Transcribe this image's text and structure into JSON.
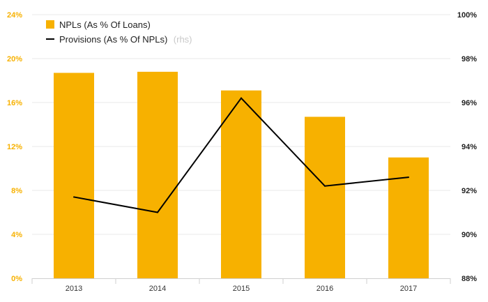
{
  "chart_data": {
    "type": "bar",
    "categories": [
      "2013",
      "2014",
      "2015",
      "2016",
      "2017"
    ],
    "series": [
      {
        "name": "NPLs (As % Of Loans)",
        "type": "bar",
        "axis": "left",
        "color": "#f7b100",
        "values": [
          18.7,
          18.8,
          17.1,
          14.7,
          11.0
        ]
      },
      {
        "name": "Provisions (As % Of NPLs)",
        "name_suffix": "(rhs)",
        "type": "line",
        "axis": "right",
        "color": "#000000",
        "values": [
          91.7,
          91.0,
          96.2,
          92.2,
          92.6
        ]
      }
    ],
    "y_left": {
      "lim": [
        0,
        24
      ],
      "ticks": [
        "0%",
        "4%",
        "8%",
        "12%",
        "16%",
        "20%",
        "24%"
      ],
      "color": "#f7b100"
    },
    "y_right": {
      "lim": [
        88,
        100
      ],
      "ticks": [
        "88%",
        "90%",
        "92%",
        "94%",
        "96%",
        "98%",
        "100%"
      ]
    },
    "grid": "horizontal",
    "legend": "top-left",
    "title": "",
    "xlabel": "",
    "ylabel": ""
  }
}
